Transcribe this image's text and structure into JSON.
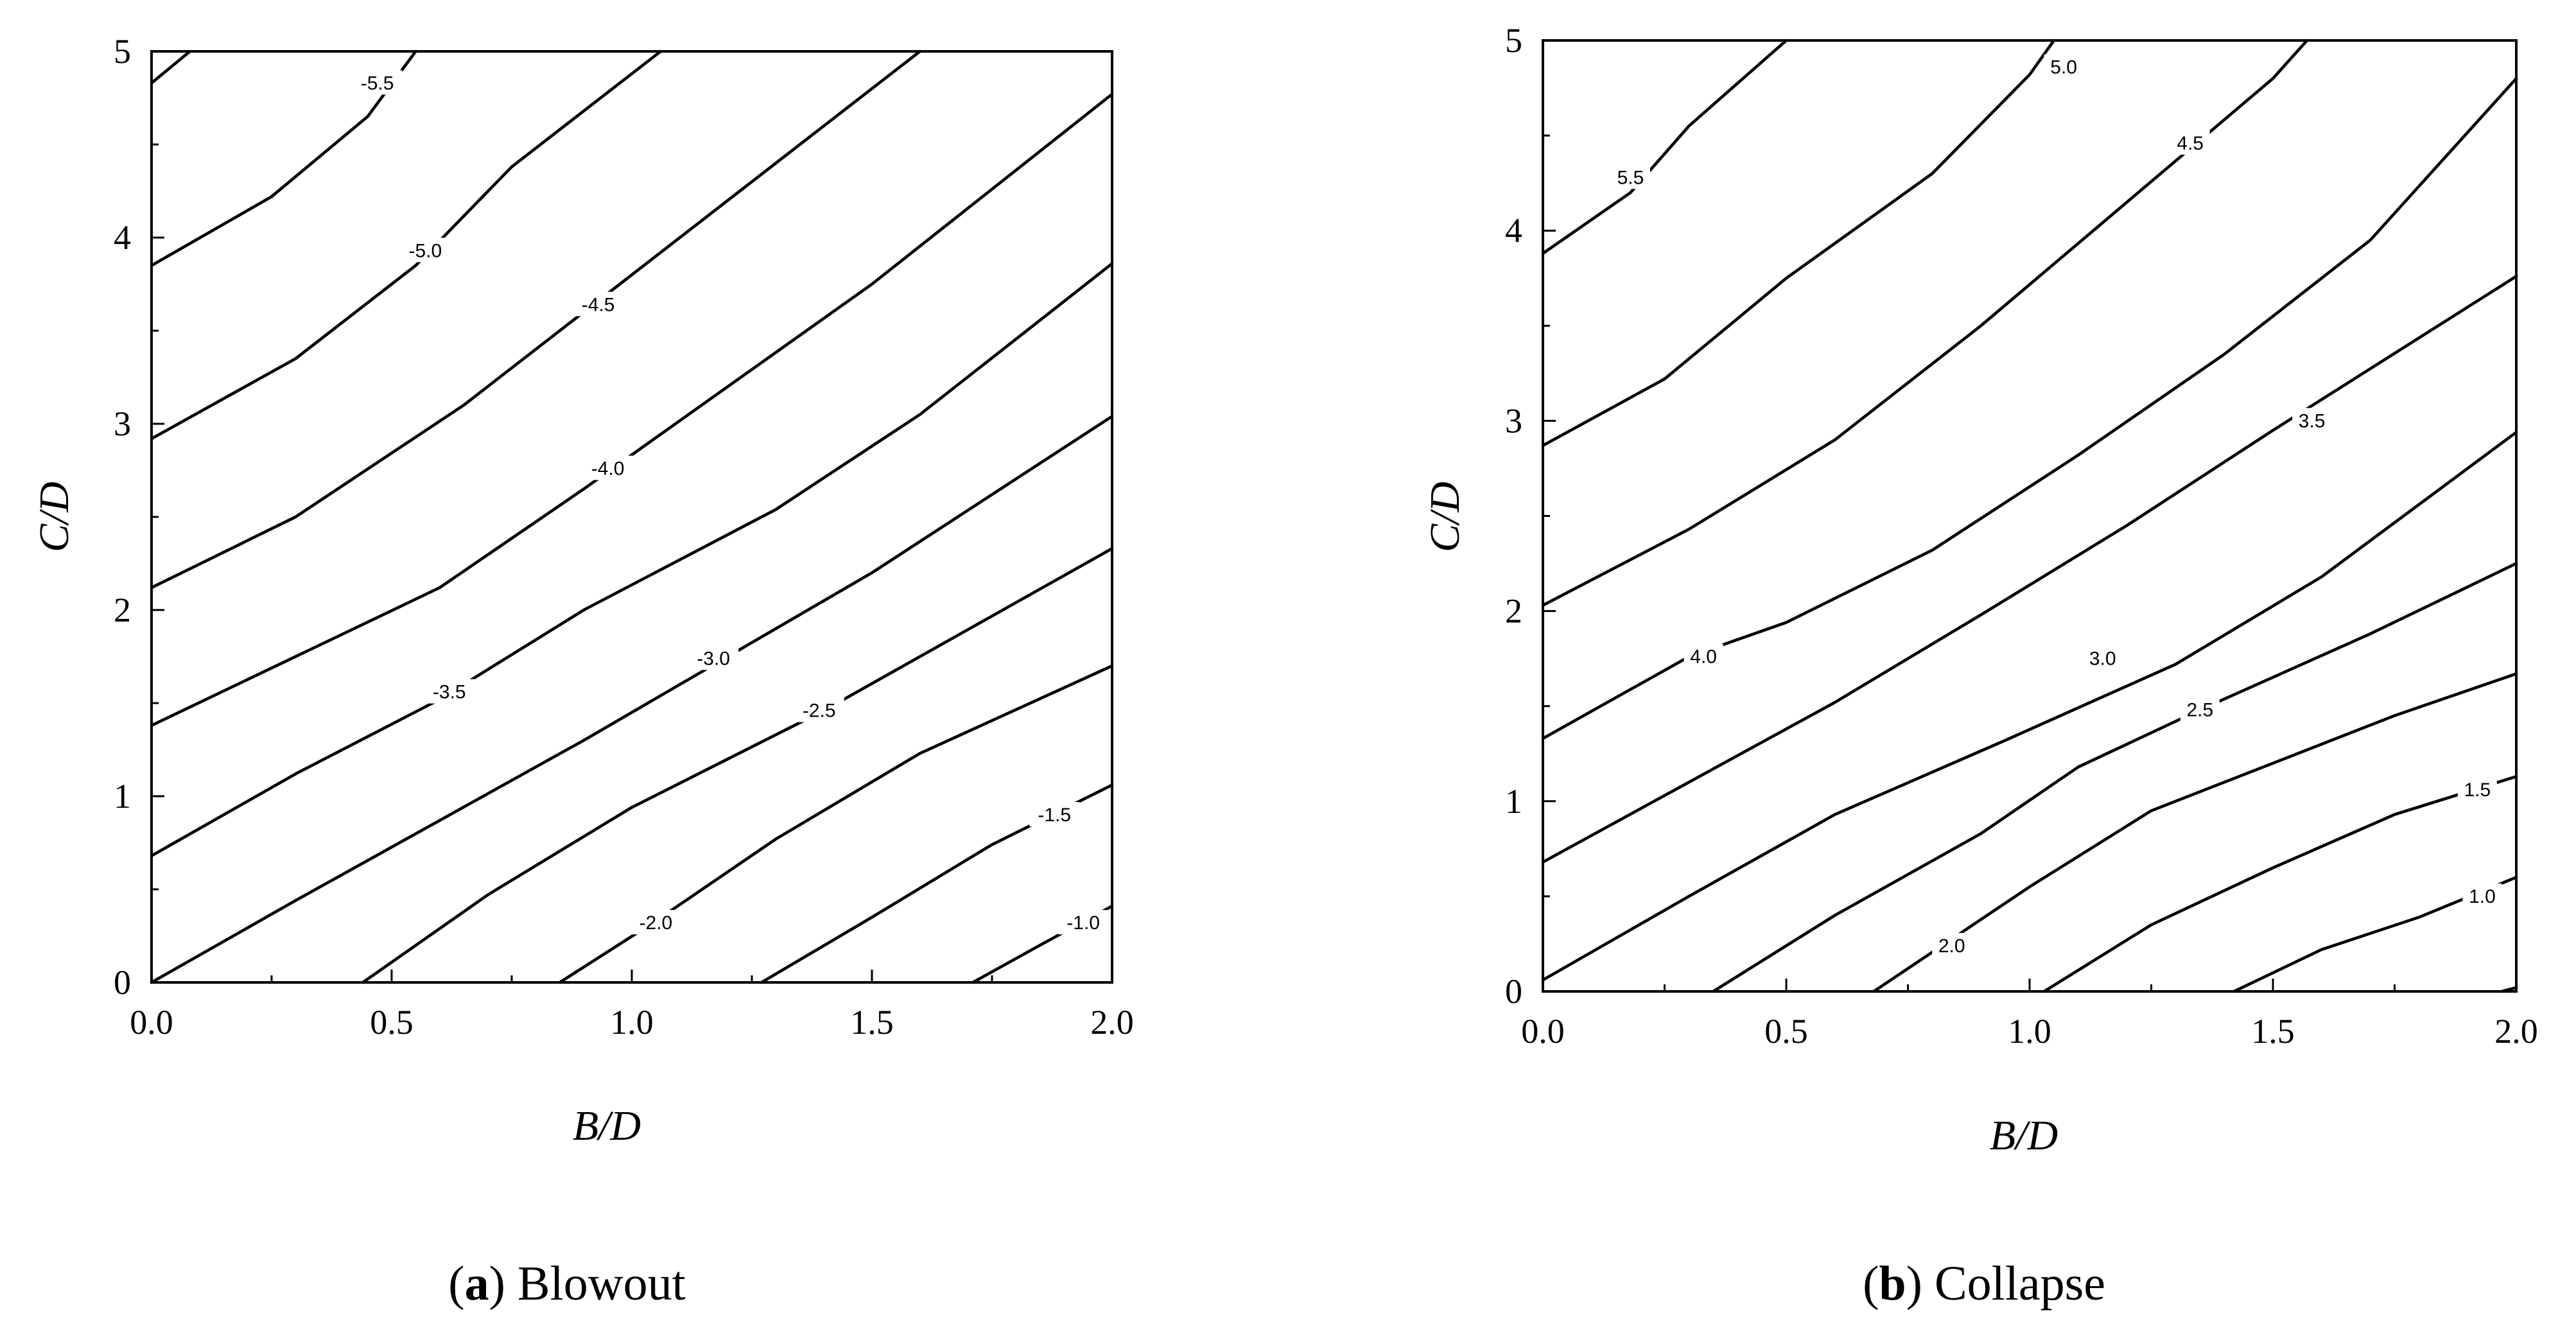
{
  "chart_data": [
    {
      "type": "contour",
      "caption_letter": "a",
      "caption_text": "Blowout",
      "xlabel": "B/D",
      "ylabel": "C/D",
      "xlim": [
        0,
        2
      ],
      "ylim": [
        0,
        5
      ],
      "x_ticks": [
        "0.0",
        "0.5",
        "1.0",
        "1.5",
        "2.0"
      ],
      "y_ticks": [
        "0",
        "1",
        "2",
        "3",
        "4",
        "5"
      ],
      "contours": [
        {
          "level": "-1.0",
          "points": [
            [
              1.71,
              0.0
            ],
            [
              1.85,
              0.2
            ],
            [
              2.0,
              0.41
            ]
          ],
          "label_at": [
            1.94,
            0.32
          ]
        },
        {
          "level": "-1.5",
          "points": [
            [
              1.27,
              0.0
            ],
            [
              1.5,
              0.35
            ],
            [
              1.75,
              0.74
            ],
            [
              2.0,
              1.06
            ]
          ],
          "label_at": [
            1.88,
            0.9
          ]
        },
        {
          "level": "-2.0",
          "points": [
            [
              0.85,
              0.0
            ],
            [
              1.05,
              0.33
            ],
            [
              1.3,
              0.77
            ],
            [
              1.6,
              1.23
            ],
            [
              2.0,
              1.7
            ]
          ],
          "label_at": [
            1.05,
            0.32
          ]
        },
        {
          "level": "-2.5",
          "points": [
            [
              0.44,
              0.0
            ],
            [
              0.7,
              0.47
            ],
            [
              1.0,
              0.94
            ],
            [
              1.4,
              1.46
            ],
            [
              2.0,
              2.33
            ]
          ],
          "label_at": [
            1.39,
            1.46
          ]
        },
        {
          "level": "-3.0",
          "points": [
            [
              0.0,
              0.0
            ],
            [
              0.3,
              0.44
            ],
            [
              0.6,
              0.87
            ],
            [
              0.9,
              1.3
            ],
            [
              1.2,
              1.75
            ],
            [
              1.5,
              2.2
            ],
            [
              2.0,
              3.04
            ]
          ],
          "label_at": [
            1.17,
            1.74
          ]
        },
        {
          "level": "-3.5",
          "points": [
            [
              0.0,
              0.68
            ],
            [
              0.3,
              1.12
            ],
            [
              0.6,
              1.52
            ],
            [
              0.9,
              2.0
            ],
            [
              1.3,
              2.54
            ],
            [
              1.6,
              3.05
            ],
            [
              2.0,
              3.86
            ]
          ],
          "label_at": [
            0.62,
            1.56
          ]
        },
        {
          "level": "-4.0",
          "points": [
            [
              0.0,
              1.38
            ],
            [
              0.3,
              1.75
            ],
            [
              0.6,
              2.12
            ],
            [
              0.9,
              2.65
            ],
            [
              1.2,
              3.2
            ],
            [
              1.5,
              3.75
            ],
            [
              2.0,
              4.77
            ]
          ],
          "label_at": [
            0.95,
            2.76
          ]
        },
        {
          "level": "-4.5",
          "points": [
            [
              0.0,
              2.12
            ],
            [
              0.3,
              2.5
            ],
            [
              0.65,
              3.1
            ],
            [
              1.0,
              3.8
            ],
            [
              1.3,
              4.4
            ],
            [
              1.6,
              5.0
            ]
          ],
          "label_at": [
            0.93,
            3.64
          ]
        },
        {
          "level": "-5.0",
          "points": [
            [
              0.0,
              2.92
            ],
            [
              0.3,
              3.35
            ],
            [
              0.55,
              3.85
            ],
            [
              0.75,
              4.38
            ],
            [
              1.06,
              5.0
            ]
          ],
          "label_at": [
            0.57,
            3.93
          ]
        },
        {
          "level": "-5.5",
          "points": [
            [
              0.0,
              3.85
            ],
            [
              0.25,
              4.22
            ],
            [
              0.45,
              4.65
            ],
            [
              0.55,
              5.0
            ]
          ],
          "label_at": [
            0.47,
            4.83
          ]
        },
        {
          "level": "",
          "points": [
            [
              0.0,
              4.83
            ],
            [
              0.08,
              5.0
            ]
          ],
          "label_at": null
        }
      ]
    },
    {
      "type": "contour",
      "caption_letter": "b",
      "caption_text": "Collapse",
      "xlabel": "B/D",
      "ylabel": "C/D",
      "xlim": [
        0,
        2
      ],
      "ylim": [
        0,
        5
      ],
      "x_ticks": [
        "0.0",
        "0.5",
        "1.0",
        "1.5",
        "2.0"
      ],
      "y_ticks": [
        "0",
        "1",
        "2",
        "3",
        "4",
        "5"
      ],
      "contours": [
        {
          "level": "",
          "points": [
            [
              1.97,
              0.0
            ],
            [
              2.0,
              0.02
            ]
          ],
          "label_at": null
        },
        {
          "level": "1.0",
          "points": [
            [
              1.42,
              0.0
            ],
            [
              1.6,
              0.22
            ],
            [
              1.8,
              0.39
            ],
            [
              2.0,
              0.6
            ]
          ],
          "label_at": [
            1.93,
            0.5
          ]
        },
        {
          "level": "1.5",
          "points": [
            [
              1.03,
              0.0
            ],
            [
              1.25,
              0.35
            ],
            [
              1.5,
              0.65
            ],
            [
              1.75,
              0.93
            ],
            [
              2.0,
              1.13
            ]
          ],
          "label_at": [
            1.92,
            1.06
          ]
        },
        {
          "level": "2.0",
          "points": [
            [
              0.68,
              0.0
            ],
            [
              1.0,
              0.55
            ],
            [
              1.25,
              0.95
            ],
            [
              1.5,
              1.2
            ],
            [
              1.75,
              1.45
            ],
            [
              2.0,
              1.67
            ]
          ],
          "label_at": [
            0.84,
            0.24
          ]
        },
        {
          "level": "2.5",
          "points": [
            [
              0.35,
              0.0
            ],
            [
              0.6,
              0.4
            ],
            [
              0.9,
              0.83
            ],
            [
              1.1,
              1.18
            ],
            [
              1.35,
              1.48
            ],
            [
              1.7,
              1.88
            ],
            [
              2.0,
              2.25
            ]
          ],
          "label_at": [
            1.35,
            1.48
          ]
        },
        {
          "level": "3.0",
          "points": [
            [
              0.0,
              0.06
            ],
            [
              0.3,
              0.5
            ],
            [
              0.6,
              0.93
            ],
            [
              0.95,
              1.32
            ],
            [
              1.3,
              1.72
            ],
            [
              1.6,
              2.18
            ],
            [
              2.0,
              2.94
            ]
          ],
          "label_at": [
            1.15,
            1.75
          ]
        },
        {
          "level": "3.5",
          "points": [
            [
              0.0,
              0.68
            ],
            [
              0.3,
              1.1
            ],
            [
              0.6,
              1.52
            ],
            [
              0.9,
              1.98
            ],
            [
              1.2,
              2.45
            ],
            [
              1.5,
              2.95
            ],
            [
              2.0,
              3.76
            ]
          ],
          "label_at": [
            1.58,
            3.0
          ]
        },
        {
          "level": "4.0",
          "points": [
            [
              0.0,
              1.33
            ],
            [
              0.3,
              1.76
            ],
            [
              0.5,
              1.94
            ],
            [
              0.8,
              2.32
            ],
            [
              1.1,
              2.82
            ],
            [
              1.4,
              3.35
            ],
            [
              1.7,
              3.95
            ],
            [
              2.0,
              4.8
            ]
          ],
          "label_at": [
            0.33,
            1.76
          ]
        },
        {
          "level": "4.5",
          "points": [
            [
              0.0,
              2.03
            ],
            [
              0.3,
              2.43
            ],
            [
              0.6,
              2.9
            ],
            [
              0.9,
              3.5
            ],
            [
              1.2,
              4.15
            ],
            [
              1.5,
              4.8
            ],
            [
              1.57,
              5.0
            ]
          ],
          "label_at": [
            1.33,
            4.46
          ]
        },
        {
          "level": "5.0",
          "points": [
            [
              0.0,
              2.87
            ],
            [
              0.25,
              3.22
            ],
            [
              0.5,
              3.75
            ],
            [
              0.8,
              4.3
            ],
            [
              1.0,
              4.82
            ],
            [
              1.05,
              5.0
            ]
          ],
          "label_at": [
            1.07,
            4.86
          ]
        },
        {
          "level": "5.5",
          "points": [
            [
              0.0,
              3.88
            ],
            [
              0.18,
              4.2
            ],
            [
              0.3,
              4.55
            ],
            [
              0.5,
              5.0
            ]
          ],
          "label_at": [
            0.18,
            4.28
          ]
        }
      ]
    }
  ]
}
